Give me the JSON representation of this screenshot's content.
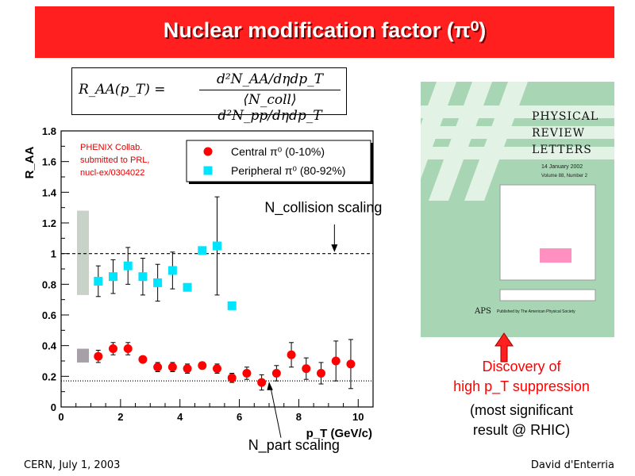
{
  "slide": {
    "title": "Nuclear modification factor (π⁰)",
    "formula": {
      "lhs": "R_AA(p_T) =",
      "numerator": "d²N_AA/dηdp_T",
      "denominator": "⟨N_coll⟩ d²N_pp/dηdp_T"
    },
    "footer_left": "CERN, July 1, 2003",
    "footer_right": "David d'Enterria",
    "discovery": {
      "line1": "Discovery of",
      "line2": "high p_T suppression",
      "line3": "(most significant",
      "line4": "result @ RHIC)"
    },
    "journal": {
      "title_lines": [
        "PHYSICAL",
        "REVIEW",
        "LETTERS"
      ],
      "date": "14 January 2002",
      "volume": "Volume 88, Number 2",
      "publisher": "Published by The American Physical Society",
      "logo": "APS"
    }
  },
  "chart_data": {
    "type": "scatter",
    "ylabel": "R_AA",
    "xlabel": "p_T (GeV/c)",
    "xlim": [
      0,
      10.5
    ],
    "ylim": [
      0,
      1.8
    ],
    "xticks": [
      "0",
      "2",
      "4",
      "6",
      "8",
      "10"
    ],
    "yticks": [
      "0",
      "0.2",
      "0.4",
      "0.6",
      "0.8",
      "1",
      "1.2",
      "1.4",
      "1.6",
      "1.8"
    ],
    "annotation": [
      "PHENIX Collab.",
      "submitted to PRL,",
      "nucl-ex/0304022"
    ],
    "ncoll_label": "N_collision scaling",
    "npart_label": "N_part scaling",
    "ref_line": 1.0,
    "npart_line": 0.17,
    "colors": {
      "central": "#ff0000",
      "peripheral": "#00e5ff",
      "band": "#c8d2c8",
      "band_small": "#a8a0a8"
    },
    "series": [
      {
        "name": "Central π⁰ (0-10%)",
        "x": [
          1.25,
          1.75,
          2.25,
          2.75,
          3.25,
          3.75,
          4.25,
          4.75,
          5.25,
          5.75,
          6.25,
          6.75,
          7.25,
          7.75,
          8.25,
          8.75,
          9.25,
          9.75
        ],
        "y": [
          0.33,
          0.38,
          0.38,
          0.31,
          0.26,
          0.26,
          0.25,
          0.27,
          0.25,
          0.19,
          0.22,
          0.16,
          0.22,
          0.34,
          0.25,
          0.22,
          0.3,
          0.28
        ],
        "err": [
          0.04,
          0.04,
          0.04,
          0.02,
          0.03,
          0.03,
          0.03,
          0.02,
          0.03,
          0.03,
          0.04,
          0.05,
          0.05,
          0.08,
          0.07,
          0.07,
          0.13,
          0.16
        ]
      },
      {
        "name": "Peripheral π⁰ (80-92%)",
        "x": [
          1.25,
          1.75,
          2.25,
          2.75,
          3.25,
          3.75,
          4.25,
          4.75,
          5.25,
          5.75
        ],
        "y": [
          0.82,
          0.85,
          0.92,
          0.85,
          0.81,
          0.89,
          0.78,
          1.02,
          1.05,
          0.66
        ],
        "err": [
          0.1,
          0.11,
          0.12,
          0.12,
          0.12,
          0.12,
          0.0,
          0.0,
          0.32,
          0.0
        ]
      }
    ],
    "legend_position": "top-right"
  }
}
